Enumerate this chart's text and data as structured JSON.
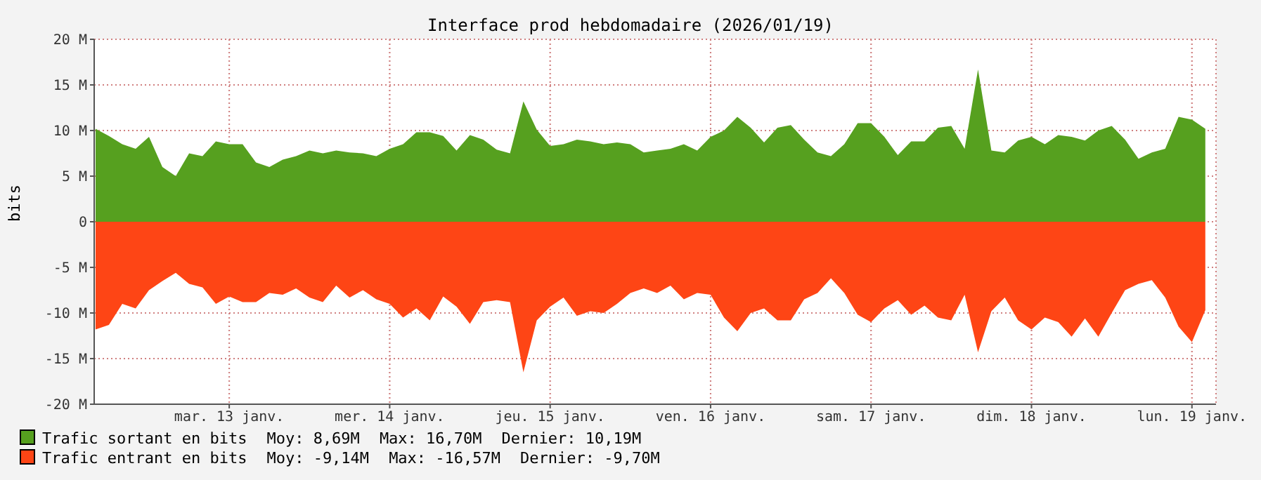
{
  "chart_data": {
    "type": "area",
    "title": "Interface prod hebdomadaire (2026/01/19)",
    "ylabel": "bits",
    "x": [
      "2026-01-12T04:00",
      "2026-01-12T06:00",
      "2026-01-12T08:00",
      "2026-01-12T10:00",
      "2026-01-12T12:00",
      "2026-01-12T14:00",
      "2026-01-12T16:00",
      "2026-01-12T18:00",
      "2026-01-12T20:00",
      "2026-01-12T22:00",
      "2026-01-13T00:00",
      "2026-01-13T02:00",
      "2026-01-13T04:00",
      "2026-01-13T06:00",
      "2026-01-13T08:00",
      "2026-01-13T10:00",
      "2026-01-13T12:00",
      "2026-01-13T14:00",
      "2026-01-13T16:00",
      "2026-01-13T18:00",
      "2026-01-13T20:00",
      "2026-01-13T22:00",
      "2026-01-14T00:00",
      "2026-01-14T02:00",
      "2026-01-14T04:00",
      "2026-01-14T06:00",
      "2026-01-14T08:00",
      "2026-01-14T10:00",
      "2026-01-14T12:00",
      "2026-01-14T14:00",
      "2026-01-14T16:00",
      "2026-01-14T18:00",
      "2026-01-14T20:00",
      "2026-01-14T22:00",
      "2026-01-15T00:00",
      "2026-01-15T02:00",
      "2026-01-15T04:00",
      "2026-01-15T06:00",
      "2026-01-15T08:00",
      "2026-01-15T10:00",
      "2026-01-15T12:00",
      "2026-01-15T14:00",
      "2026-01-15T16:00",
      "2026-01-15T18:00",
      "2026-01-15T20:00",
      "2026-01-15T22:00",
      "2026-01-16T00:00",
      "2026-01-16T02:00",
      "2026-01-16T04:00",
      "2026-01-16T06:00",
      "2026-01-16T08:00",
      "2026-01-16T10:00",
      "2026-01-16T12:00",
      "2026-01-16T14:00",
      "2026-01-16T16:00",
      "2026-01-16T18:00",
      "2026-01-16T20:00",
      "2026-01-16T22:00",
      "2026-01-17T00:00",
      "2026-01-17T02:00",
      "2026-01-17T04:00",
      "2026-01-17T06:00",
      "2026-01-17T08:00",
      "2026-01-17T10:00",
      "2026-01-17T12:00",
      "2026-01-17T14:00",
      "2026-01-17T16:00",
      "2026-01-17T18:00",
      "2026-01-17T20:00",
      "2026-01-17T22:00",
      "2026-01-18T00:00",
      "2026-01-18T02:00",
      "2026-01-18T04:00",
      "2026-01-18T06:00",
      "2026-01-18T08:00",
      "2026-01-18T10:00",
      "2026-01-18T12:00",
      "2026-01-18T14:00",
      "2026-01-18T16:00",
      "2026-01-18T18:00",
      "2026-01-18T20:00",
      "2026-01-18T22:00",
      "2026-01-19T00:00",
      "2026-01-19T02:00"
    ],
    "series": [
      {
        "name": "Trafic sortant en bits",
        "color": "#56a01f",
        "values": [
          10.2,
          9.4,
          8.5,
          8.0,
          9.3,
          6.0,
          5.0,
          7.5,
          7.2,
          8.8,
          8.5,
          8.5,
          6.5,
          6.0,
          6.8,
          7.2,
          7.8,
          7.5,
          7.8,
          7.6,
          7.5,
          7.2,
          8.0,
          8.5,
          9.8,
          9.8,
          9.4,
          7.8,
          9.5,
          9.0,
          7.9,
          7.5,
          13.2,
          10.1,
          8.3,
          8.5,
          9.0,
          8.8,
          8.5,
          8.7,
          8.5,
          7.6,
          7.8,
          8.0,
          8.5,
          7.8,
          9.3,
          10.0,
          11.5,
          10.3,
          8.7,
          10.3,
          10.6,
          9.0,
          7.6,
          7.2,
          8.5,
          10.8,
          10.8,
          9.3,
          7.3,
          8.8,
          8.8,
          10.3,
          10.5,
          8.0,
          16.7,
          7.8,
          7.6,
          8.9,
          9.3,
          8.5,
          9.5,
          9.3,
          8.9,
          10.0,
          10.5,
          9.0,
          6.9,
          7.6,
          8.0,
          11.5,
          11.2,
          10.2
        ]
      },
      {
        "name": "Trafic entrant en bits",
        "color": "#fe4515",
        "values": [
          -11.8,
          -11.3,
          -9.0,
          -9.5,
          -7.5,
          -6.5,
          -5.6,
          -6.8,
          -7.2,
          -9.0,
          -8.2,
          -8.8,
          -8.8,
          -7.8,
          -8.0,
          -7.3,
          -8.3,
          -8.8,
          -7.0,
          -8.3,
          -7.5,
          -8.5,
          -9.0,
          -10.5,
          -9.5,
          -10.8,
          -8.2,
          -9.3,
          -11.2,
          -8.8,
          -8.6,
          -8.8,
          -16.5,
          -10.8,
          -9.3,
          -8.3,
          -10.3,
          -9.8,
          -10.0,
          -9.0,
          -7.8,
          -7.3,
          -7.8,
          -7.0,
          -8.5,
          -7.8,
          -8.0,
          -10.5,
          -12.0,
          -10.0,
          -9.5,
          -10.8,
          -10.8,
          -8.5,
          -7.8,
          -6.2,
          -7.8,
          -10.2,
          -11.0,
          -9.5,
          -8.6,
          -10.2,
          -9.2,
          -10.5,
          -10.8,
          -8.0,
          -14.3,
          -9.8,
          -8.3,
          -10.8,
          -11.8,
          -10.5,
          -11.0,
          -12.6,
          -10.6,
          -12.6,
          -10.0,
          -7.5,
          -6.8,
          -6.4,
          -8.3,
          -11.5,
          -13.2,
          -9.7
        ]
      }
    ],
    "xlim": [
      "2026-01-12T03:48",
      "2026-01-19T03:36"
    ],
    "xticks": [
      {
        "value": "2026-01-13",
        "label": "mar. 13 janv."
      },
      {
        "value": "2026-01-14",
        "label": "mer. 14 janv."
      },
      {
        "value": "2026-01-15",
        "label": "jeu. 15 janv."
      },
      {
        "value": "2026-01-16",
        "label": "ven. 16 janv."
      },
      {
        "value": "2026-01-17",
        "label": "sam. 17 janv."
      },
      {
        "value": "2026-01-18",
        "label": "dim. 18 janv."
      },
      {
        "value": "2026-01-19",
        "label": "lun. 19 janv."
      }
    ],
    "ylim": [
      -20,
      20
    ],
    "yticks": [
      {
        "value": -20,
        "label": "-20 M"
      },
      {
        "value": -15,
        "label": "-15 M"
      },
      {
        "value": -10,
        "label": "-10 M"
      },
      {
        "value": -5,
        "label": "-5 M"
      },
      0,
      {
        "value": 5,
        "label": "5 M"
      },
      {
        "value": 10,
        "label": "10 M"
      },
      {
        "value": 15,
        "label": "15 M"
      },
      {
        "value": 20,
        "label": "20 M"
      }
    ],
    "grid": true,
    "legend": "bottom",
    "annotations": [
      "Moy: 8,69M",
      "Max: 16,70M",
      "Dernier: 10,19M",
      "Moy: -9,14M",
      "Max: -16,57M",
      "Dernier: -9,70M"
    ]
  }
}
